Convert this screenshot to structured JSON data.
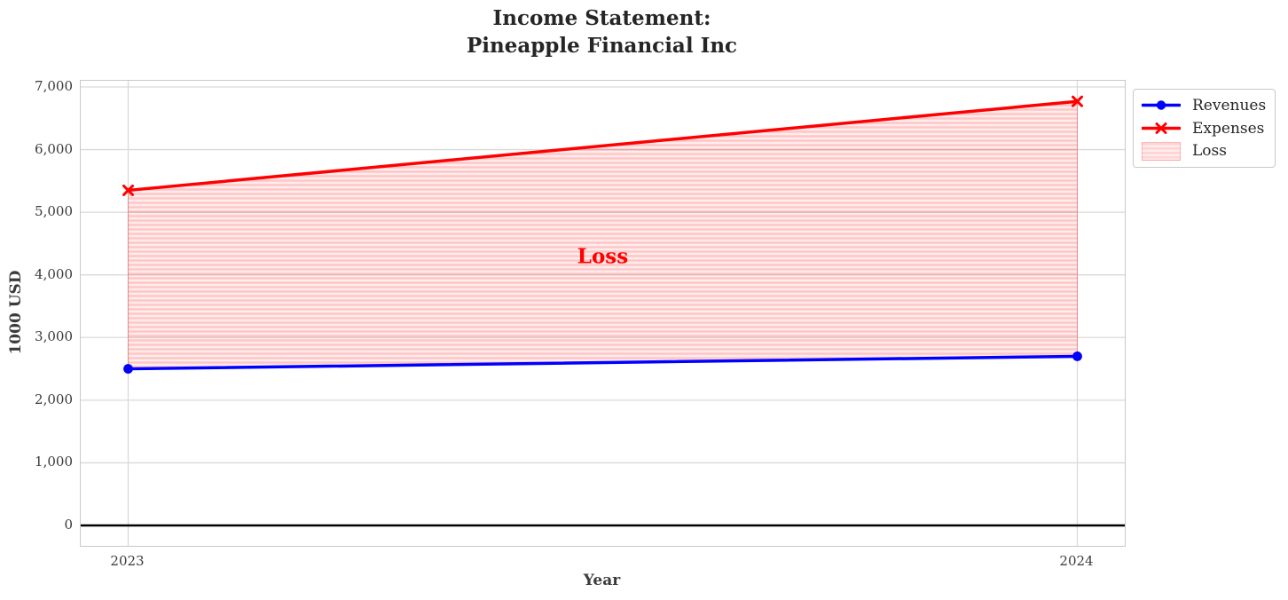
{
  "title": {
    "line1": "Income Statement:",
    "line2": "Pineapple Financial Inc"
  },
  "legend": {
    "items": [
      {
        "label": "Revenues"
      },
      {
        "label": "Expenses"
      },
      {
        "label": "Loss"
      }
    ]
  },
  "colors": {
    "revenues": "#0000ff",
    "expenses": "#ff0000",
    "loss_bg": "rgba(255,0,0,0.07)",
    "loss_stripe": "rgba(255,0,0,0.17)",
    "loss_edge": "rgba(255,0,0,0.28)",
    "grid": "#d9d9d9",
    "zero_line": "#000000",
    "text_dark": "#262626",
    "text_tick": "#3b3b3b"
  },
  "chart_data": {
    "type": "line",
    "title": "Income Statement:\nPineapple Financial Inc",
    "xlabel": "Year",
    "ylabel": "1000 USD",
    "x": [
      2023,
      2024
    ],
    "series": [
      {
        "name": "Revenues",
        "values": [
          2500,
          2700
        ],
        "color": "#0000ff",
        "marker": "circle"
      },
      {
        "name": "Expenses",
        "values": [
          5350,
          6770
        ],
        "color": "#ff0000",
        "marker": "x"
      }
    ],
    "fill_between": {
      "label": "Loss",
      "upper_series": "Expenses",
      "lower_series": "Revenues",
      "style": "red horizontal hatch, translucent"
    },
    "annotation": {
      "text": "Loss",
      "x": 2023.5,
      "y": 4300,
      "color": "#ff0000"
    },
    "xticks": [
      {
        "value": 2023,
        "label": "2023"
      },
      {
        "value": 2024,
        "label": "2024"
      }
    ],
    "yticks": [
      {
        "value": 0,
        "label": "0"
      },
      {
        "value": 1000,
        "label": "1,000"
      },
      {
        "value": 2000,
        "label": "2,000"
      },
      {
        "value": 3000,
        "label": "3,000"
      },
      {
        "value": 4000,
        "label": "4,000"
      },
      {
        "value": 5000,
        "label": "5,000"
      },
      {
        "value": 6000,
        "label": "6,000"
      },
      {
        "value": 7000,
        "label": "7,000"
      }
    ],
    "xlim": [
      2022.95,
      2024.05
    ],
    "ylim": [
      -326,
      7099
    ],
    "grid": true,
    "zero_line": true,
    "legend_position": "outside upper right"
  }
}
